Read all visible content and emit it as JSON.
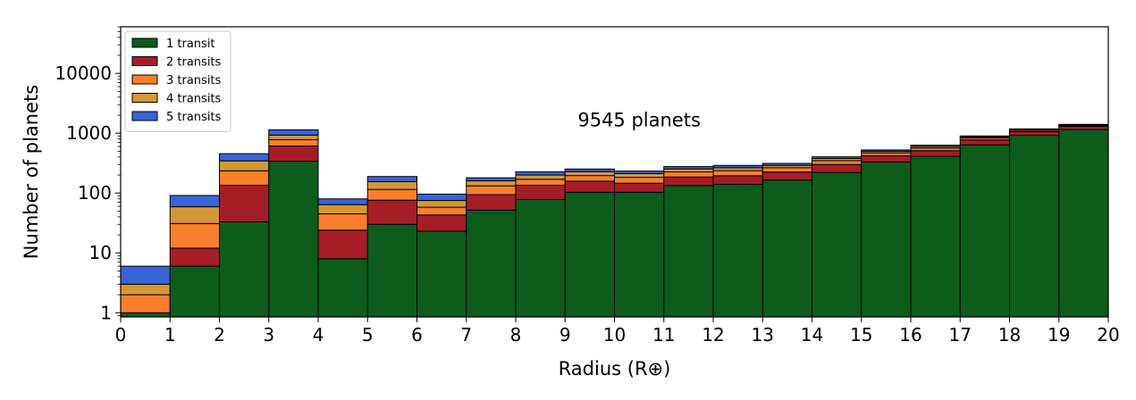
{
  "chart_data": {
    "type": "bar",
    "stacked": true,
    "title": "",
    "xlabel": "Radius",
    "xlabel_unit": "(R⊕)",
    "ylabel": "Number of planets",
    "yscale": "log",
    "xlim": [
      0,
      20
    ],
    "ylim": [
      0.85,
      60000
    ],
    "x_ticks": [
      "0",
      "1",
      "2",
      "3",
      "4",
      "5",
      "6",
      "7",
      "8",
      "9",
      "10",
      "11",
      "12",
      "13",
      "14",
      "15",
      "16",
      "17",
      "18",
      "19",
      "20"
    ],
    "y_ticks": [
      "1",
      "10",
      "100",
      "1000",
      "10000"
    ],
    "annotation": "9545 planets",
    "legend_position": "top-left",
    "bin_edges": [
      0,
      1,
      2,
      3,
      4,
      5,
      6,
      7,
      8,
      9,
      10,
      11,
      12,
      13,
      14,
      15,
      16,
      17,
      18,
      19,
      20
    ],
    "series": [
      {
        "name": "1 transit",
        "color": "#0d5c1b",
        "values": [
          1,
          6,
          33,
          340,
          8,
          30,
          23,
          52,
          78,
          103,
          103,
          133,
          140,
          165,
          220,
          330,
          410,
          640,
          920,
          1150
        ]
      },
      {
        "name": "2 transits",
        "color": "#a51e26",
        "values": [
          0,
          6,
          102,
          270,
          16,
          46,
          20,
          42,
          57,
          55,
          43,
          52,
          55,
          60,
          80,
          90,
          100,
          130,
          140,
          150
        ]
      },
      {
        "name": "3 transits",
        "color": "#f97f2b",
        "values": [
          1,
          19,
          100,
          170,
          21,
          39,
          15,
          38,
          35,
          38,
          37,
          41,
          42,
          40,
          48,
          50,
          55,
          60,
          55,
          45
        ]
      },
      {
        "name": "4 transits",
        "color": "#d69833",
        "values": [
          1,
          28,
          110,
          150,
          19,
          40,
          17,
          28,
          30,
          32,
          29,
          27,
          28,
          25,
          30,
          30,
          35,
          40,
          35,
          35
        ]
      },
      {
        "name": "5 transits",
        "color": "#3864d8",
        "values": [
          3,
          32,
          110,
          210,
          16,
          34,
          21,
          20,
          27,
          24,
          21,
          24,
          25,
          23,
          25,
          25,
          30,
          30,
          30,
          25
        ]
      }
    ]
  }
}
